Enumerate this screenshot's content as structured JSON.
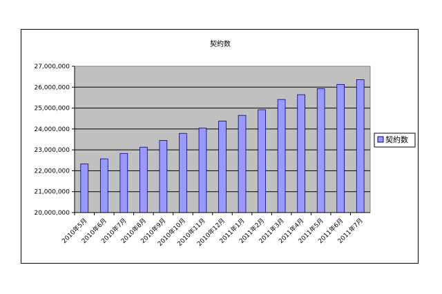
{
  "chart_data": {
    "type": "bar",
    "title": "契約数",
    "categories": [
      "2010年5月",
      "2010年6月",
      "2010年7月",
      "2010年8月",
      "2010年9月",
      "2010年10月",
      "2010年11月",
      "2010年12月",
      "2011年1月",
      "2011年2月",
      "2011年3月",
      "2011年4月",
      "2011年5月",
      "2011年6月",
      "2011年7月"
    ],
    "series": [
      {
        "name": "契約数",
        "values": [
          22330000,
          22570000,
          22830000,
          23130000,
          23450000,
          23790000,
          24040000,
          24380000,
          24650000,
          24920000,
          25410000,
          25640000,
          25930000,
          26130000,
          26360000
        ]
      }
    ],
    "y_ticks": [
      "20,000,000",
      "21,000,000",
      "22,000,000",
      "23,000,000",
      "24,000,000",
      "25,000,000",
      "26,000,000",
      "27,000,000"
    ],
    "ylim": [
      20000000,
      27000000
    ],
    "grid": true,
    "legend_position": "right",
    "colors": {
      "bar_fill": "#9999ff",
      "bar_stroke": "#000080",
      "plot_background": "#c0c0c0",
      "gridline": "#000000"
    }
  }
}
